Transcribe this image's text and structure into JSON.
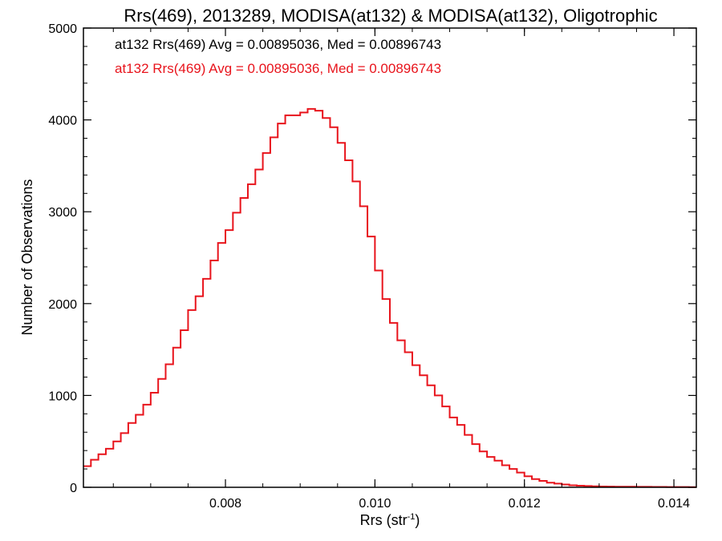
{
  "chart_data": {
    "type": "line",
    "title": "Rrs(469), 2013289, MODISA(at132) & MODISA(at132), Oligotrophic",
    "xlabel_main": "Rrs (str",
    "xlabel_sup": "-1",
    "xlabel_close": ")",
    "ylabel": "Number of Observations",
    "xlim": [
      0.0061,
      0.0143
    ],
    "ylim": [
      0,
      5000
    ],
    "x_ticks": [
      0.008,
      0.01,
      0.012,
      0.014
    ],
    "x_tick_labels": [
      "0.008",
      "0.010",
      "0.012",
      "0.014"
    ],
    "y_ticks": [
      0,
      1000,
      2000,
      3000,
      4000,
      5000
    ],
    "y_tick_labels": [
      "0",
      "1000",
      "2000",
      "3000",
      "4000",
      "5000"
    ],
    "grid": false,
    "legend_placement": "top-left",
    "annotations": [
      {
        "text": "at132 Rrs(469) Avg = 0.00895036, Med = 0.00896743",
        "color": "#000000"
      },
      {
        "text": "at132 Rrs(469) Avg = 0.00895036, Med = 0.00896743",
        "color": "#e8141c"
      }
    ],
    "series": [
      {
        "color": "#e8141c",
        "step": true,
        "x": [
          0.0061,
          0.0062,
          0.0063,
          0.0064,
          0.0065,
          0.0066,
          0.0067,
          0.0068,
          0.0069,
          0.007,
          0.0071,
          0.0072,
          0.0073,
          0.0074,
          0.0075,
          0.0076,
          0.0077,
          0.0078,
          0.0079,
          0.008,
          0.0081,
          0.0082,
          0.0083,
          0.0084,
          0.0085,
          0.0086,
          0.0087,
          0.0088,
          0.0089,
          0.009,
          0.0091,
          0.0092,
          0.0093,
          0.0094,
          0.0095,
          0.0096,
          0.0097,
          0.0098,
          0.0099,
          0.01,
          0.0101,
          0.0102,
          0.0103,
          0.0104,
          0.0105,
          0.0106,
          0.0107,
          0.0108,
          0.0109,
          0.011,
          0.0111,
          0.0112,
          0.0113,
          0.0114,
          0.0115,
          0.0116,
          0.0117,
          0.0118,
          0.0119,
          0.012,
          0.0121,
          0.0122,
          0.0123,
          0.0124,
          0.0125,
          0.0126,
          0.0127,
          0.0128,
          0.0129,
          0.013,
          0.0131,
          0.0132,
          0.0133,
          0.0134,
          0.0135,
          0.0136,
          0.0137,
          0.0138,
          0.0139,
          0.014,
          0.0141,
          0.0142,
          0.0143
        ],
        "values": [
          230,
          300,
          360,
          420,
          500,
          590,
          700,
          790,
          900,
          1030,
          1180,
          1340,
          1520,
          1710,
          1930,
          2080,
          2270,
          2470,
          2660,
          2800,
          2990,
          3150,
          3300,
          3460,
          3640,
          3810,
          3960,
          4050,
          4050,
          4080,
          4120,
          4100,
          4020,
          3920,
          3750,
          3560,
          3330,
          3060,
          2730,
          2360,
          2050,
          1790,
          1600,
          1470,
          1330,
          1220,
          1110,
          1000,
          880,
          760,
          680,
          570,
          470,
          390,
          330,
          290,
          240,
          200,
          160,
          120,
          90,
          70,
          50,
          40,
          30,
          22,
          18,
          14,
          11,
          9,
          8,
          7,
          6,
          6,
          5,
          5,
          4,
          4,
          3,
          3,
          3,
          2,
          2
        ]
      }
    ]
  }
}
